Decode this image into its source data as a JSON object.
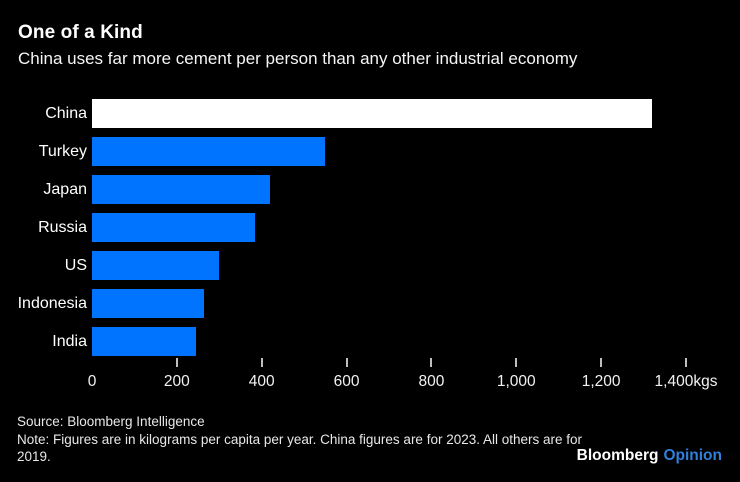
{
  "header": {
    "title": "One of a Kind",
    "subtitle": "China uses far more cement per person than any other industrial economy"
  },
  "chart_data": {
    "type": "bar",
    "orientation": "horizontal",
    "title": "One of a Kind",
    "subtitle": "China uses far more cement per person than any other industrial economy",
    "categories": [
      "China",
      "Turkey",
      "Japan",
      "Russia",
      "US",
      "Indonesia",
      "India"
    ],
    "values": [
      1320,
      550,
      420,
      385,
      300,
      265,
      245
    ],
    "unit": "kilograms per capita per year",
    "xlim": [
      0,
      1400
    ],
    "x_ticks": [
      0,
      200,
      400,
      600,
      800,
      1000,
      1200,
      1400
    ],
    "x_tick_labels": [
      "0",
      "200",
      "400",
      "600",
      "800",
      "1,000",
      "1,200",
      "1,400kgs"
    ],
    "highlight_category": "China",
    "grid": false,
    "legend": false,
    "colors": {
      "background": "#000000",
      "bar": "#0073ff",
      "highlight_bar": "#ffffff",
      "text": "#ffffff",
      "tick": "#bfbfbf"
    }
  },
  "footer": {
    "source": "Source: Bloomberg Intelligence",
    "note": "Note: Figures are in kilograms per capita per year. China figures are for 2023. All others are for 2019.",
    "logo": {
      "brand": "Bloomberg",
      "product": "Opinion",
      "product_color": "#2f7fdb"
    }
  }
}
